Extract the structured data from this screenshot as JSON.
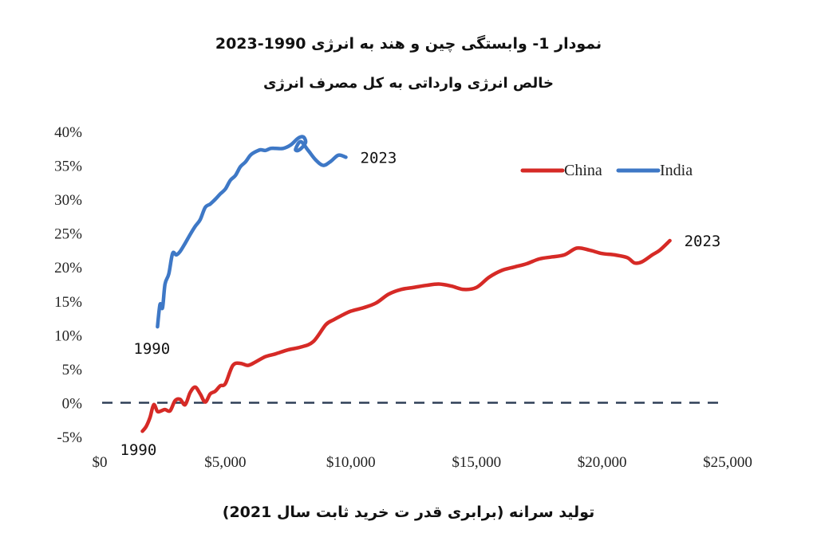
{
  "chart_data": {
    "type": "line",
    "title": "نمودار 1- وابستگی چین و هند به انرژی 1990-2023",
    "subtitle": "خالص انرژی وارداتی به کل مصرف انرژی",
    "xlabel": "تولید سرانه (برابری قدر ت خرید ثابت سال 2021)",
    "ylabel": "",
    "xlim": [
      0,
      25000
    ],
    "ylim": [
      -5,
      40
    ],
    "x_ticks": [
      "$0",
      "$5,000",
      "$10,000",
      "$15,000",
      "$20,000",
      "$25,000"
    ],
    "y_ticks": [
      "-5%",
      "0%",
      "5%",
      "10%",
      "15%",
      "20%",
      "25%",
      "30%",
      "35%",
      "40%"
    ],
    "legend_position": "top-right",
    "reference_line": {
      "y": 0,
      "style": "dashed",
      "color": "#2f3f56"
    },
    "series": [
      {
        "name": "China",
        "color": "#d62a26",
        "start_label": "1990",
        "end_label": "2023",
        "x": [
          1700,
          1850,
          2000,
          2150,
          2300,
          2450,
          2600,
          2800,
          3000,
          3200,
          3400,
          3600,
          3800,
          4000,
          4200,
          4400,
          4600,
          4800,
          5000,
          5300,
          5600,
          5900,
          6200,
          6600,
          7000,
          7500,
          8000,
          8500,
          9000,
          9300,
          9600,
          10000,
          10500,
          11000,
          11500,
          12000,
          12500,
          13000,
          13500,
          14000,
          14500,
          15000,
          15500,
          16000,
          16500,
          17000,
          17500,
          18000,
          18500,
          19000,
          19500,
          20000,
          20500,
          21000,
          21300,
          21600,
          22000,
          22300,
          22700
        ],
        "y": [
          -4.2,
          -3.5,
          -2.2,
          -0.3,
          -1.3,
          -1.2,
          -1.0,
          -1.2,
          0.3,
          0.5,
          -0.3,
          1.5,
          2.3,
          1.3,
          0.1,
          1.3,
          1.7,
          2.5,
          2.8,
          5.5,
          5.8,
          5.5,
          6.0,
          6.8,
          7.2,
          7.8,
          8.2,
          9.0,
          11.5,
          12.2,
          12.8,
          13.5,
          14.0,
          14.7,
          16.0,
          16.7,
          17.0,
          17.3,
          17.5,
          17.2,
          16.7,
          17.0,
          18.5,
          19.5,
          20.0,
          20.5,
          21.2,
          21.5,
          21.8,
          22.8,
          22.5,
          22.0,
          21.8,
          21.4,
          20.6,
          20.8,
          21.8,
          22.5,
          23.9
        ]
      },
      {
        "name": "India",
        "color": "#3e78c6",
        "start_label": "1990",
        "end_label": "2023",
        "x": [
          2300,
          2400,
          2500,
          2600,
          2750,
          2900,
          3050,
          3200,
          3400,
          3600,
          3800,
          4000,
          4200,
          4400,
          4600,
          4800,
          5000,
          5200,
          5400,
          5600,
          5800,
          6000,
          6200,
          6400,
          6600,
          6800,
          7000,
          7300,
          7600,
          7900,
          8100,
          8200,
          8100,
          7900,
          7800,
          8000,
          8300,
          8600,
          8900,
          9200,
          9500,
          9800
        ],
        "y": [
          11.2,
          14.5,
          14.0,
          17.5,
          19.0,
          22.0,
          21.8,
          22.3,
          23.5,
          24.8,
          26.0,
          27.0,
          28.8,
          29.3,
          30.0,
          30.8,
          31.5,
          32.8,
          33.5,
          34.8,
          35.5,
          36.5,
          37.0,
          37.3,
          37.2,
          37.5,
          37.5,
          37.5,
          38.0,
          39.0,
          39.2,
          38.5,
          37.8,
          37.2,
          37.4,
          38.5,
          37.2,
          35.8,
          35.0,
          35.6,
          36.5,
          36.2
        ]
      }
    ]
  }
}
